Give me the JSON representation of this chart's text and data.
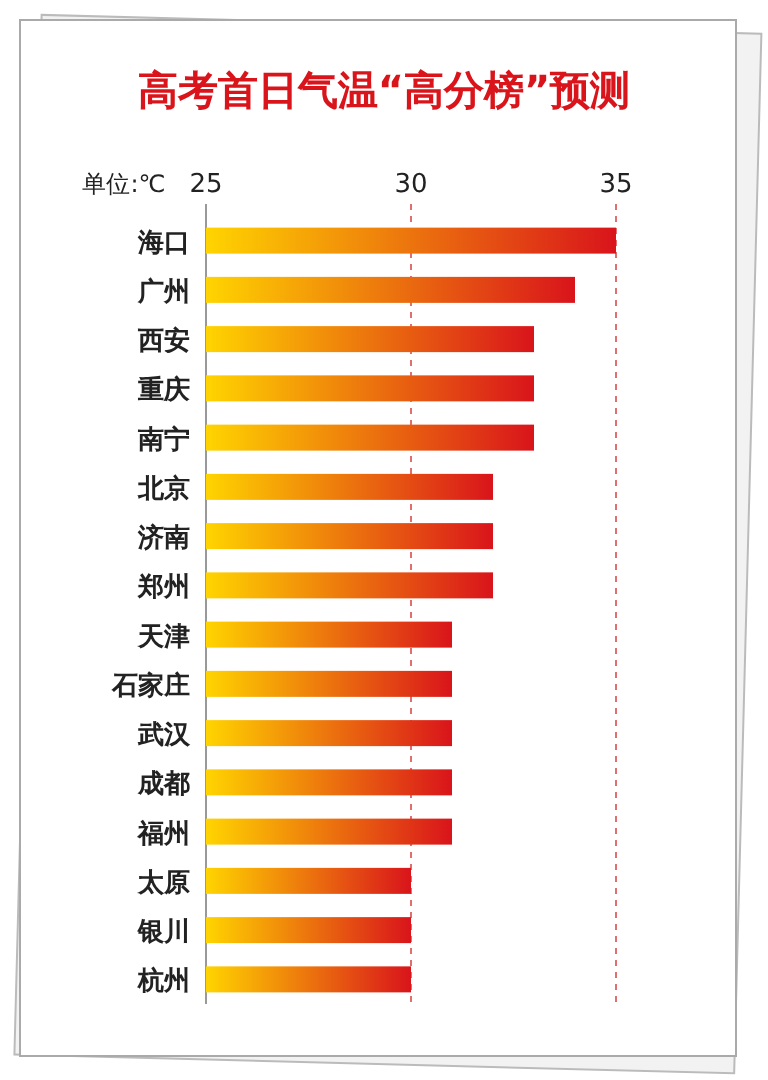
{
  "chart_data": {
    "type": "bar",
    "orientation": "horizontal",
    "title": "高考首日气温“高分榜”预测",
    "xlabel": "单位:℃",
    "categories": [
      "海口",
      "广州",
      "西安",
      "重庆",
      "南宁",
      "北京",
      "济南",
      "郑州",
      "天津",
      "石家庄",
      "武汉",
      "成都",
      "福州",
      "太原",
      "银川",
      "杭州"
    ],
    "values": [
      35,
      34,
      33,
      33,
      33,
      32,
      32,
      32,
      31,
      31,
      31,
      31,
      31,
      30,
      30,
      30
    ],
    "color": "#d9141b",
    "xlim": [
      25,
      35
    ],
    "xticks": [
      25,
      30,
      35
    ],
    "ref_lines": [
      {
        "axis": "x",
        "value": 30,
        "color": "#e07070",
        "line_style": "dashed"
      },
      {
        "axis": "x",
        "value": 35,
        "color": "#e07070",
        "line_style": "dashed"
      }
    ]
  }
}
